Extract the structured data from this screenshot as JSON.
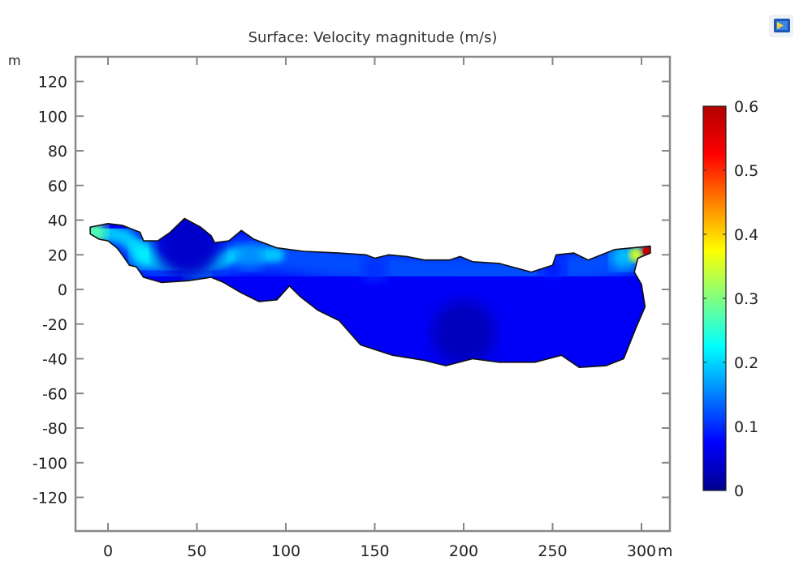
{
  "toolbar": {
    "icon": "image-export-icon"
  },
  "chart_data": {
    "type": "heatmap",
    "title": "Surface: Velocity magnitude (m/s)",
    "xlabel": "m",
    "ylabel": "m",
    "xlim": [
      -18,
      315
    ],
    "ylim": [
      -137,
      136
    ],
    "xticks": [
      0,
      50,
      100,
      150,
      200,
      250,
      300
    ],
    "xtick_labels": [
      "0",
      "50",
      "100",
      "150",
      "200",
      "250",
      "300"
    ],
    "yticks": [
      120,
      100,
      80,
      60,
      40,
      20,
      0,
      -20,
      -40,
      -60,
      -80,
      -100,
      -120
    ],
    "ytick_labels": [
      "120",
      "100",
      "80",
      "60",
      "40",
      "20",
      "0",
      "-20",
      "-40",
      "-60",
      "-80",
      "-100",
      "-120"
    ],
    "colorbar": {
      "min": 0,
      "max": 0.6,
      "ticks": [
        0,
        0.1,
        0.2,
        0.3,
        0.4,
        0.5,
        0.6
      ],
      "tick_labels": [
        "0",
        "0.1",
        "0.2",
        "0.3",
        "0.4",
        "0.5",
        "0.6"
      ],
      "colormap": "rainbow",
      "colors": [
        "#00008f",
        "#0000ff",
        "#0080ff",
        "#00ffff",
        "#80ff80",
        "#ffff00",
        "#ff8000",
        "#ff0000",
        "#b00000"
      ]
    },
    "domain_outline": [
      [
        -10,
        36
      ],
      [
        0,
        38
      ],
      [
        8,
        37
      ],
      [
        18,
        33
      ],
      [
        20,
        28
      ],
      [
        28,
        28
      ],
      [
        35,
        33
      ],
      [
        43,
        41
      ],
      [
        52,
        36
      ],
      [
        58,
        31
      ],
      [
        60,
        27
      ],
      [
        68,
        28
      ],
      [
        75,
        34
      ],
      [
        82,
        29
      ],
      [
        95,
        24
      ],
      [
        110,
        22
      ],
      [
        130,
        21
      ],
      [
        145,
        20
      ],
      [
        150,
        18
      ],
      [
        158,
        20
      ],
      [
        168,
        19
      ],
      [
        178,
        17
      ],
      [
        192,
        17
      ],
      [
        198,
        19
      ],
      [
        205,
        16
      ],
      [
        220,
        15
      ],
      [
        238,
        10
      ],
      [
        250,
        14
      ],
      [
        252,
        20
      ],
      [
        262,
        21
      ],
      [
        270,
        17
      ],
      [
        285,
        23
      ],
      [
        305,
        25
      ],
      [
        305,
        21
      ],
      [
        298,
        18
      ],
      [
        296,
        10
      ],
      [
        300,
        3
      ],
      [
        302,
        -10
      ],
      [
        297,
        -22
      ],
      [
        290,
        -40
      ],
      [
        280,
        -44
      ],
      [
        265,
        -45
      ],
      [
        255,
        -38
      ],
      [
        240,
        -42
      ],
      [
        220,
        -42
      ],
      [
        205,
        -40
      ],
      [
        190,
        -44
      ],
      [
        178,
        -41
      ],
      [
        160,
        -38
      ],
      [
        142,
        -32
      ],
      [
        130,
        -18
      ],
      [
        118,
        -12
      ],
      [
        108,
        -4
      ],
      [
        102,
        2
      ],
      [
        95,
        -6
      ],
      [
        85,
        -7
      ],
      [
        75,
        -2
      ],
      [
        65,
        4
      ],
      [
        58,
        7
      ],
      [
        45,
        5
      ],
      [
        30,
        4
      ],
      [
        20,
        7
      ],
      [
        16,
        13
      ],
      [
        12,
        14
      ],
      [
        8,
        20
      ],
      [
        5,
        24
      ],
      [
        0,
        28
      ],
      [
        -5,
        29
      ],
      [
        -10,
        32
      ]
    ],
    "field_samples": [
      {
        "x": -8,
        "y": 33,
        "value": 0.28
      },
      {
        "x": 20,
        "y": 20,
        "value": 0.22
      },
      {
        "x": 50,
        "y": 12,
        "value": 0.18
      },
      {
        "x": 80,
        "y": 19,
        "value": 0.15
      },
      {
        "x": 150,
        "y": 12,
        "value": 0.1
      },
      {
        "x": 250,
        "y": 12,
        "value": 0.08
      },
      {
        "x": 290,
        "y": 19,
        "value": 0.2
      },
      {
        "x": 303,
        "y": 22,
        "value": 0.6
      },
      {
        "x": 200,
        "y": -25,
        "value": 0.03
      },
      {
        "x": 45,
        "y": 25,
        "value": 0.04
      }
    ]
  }
}
